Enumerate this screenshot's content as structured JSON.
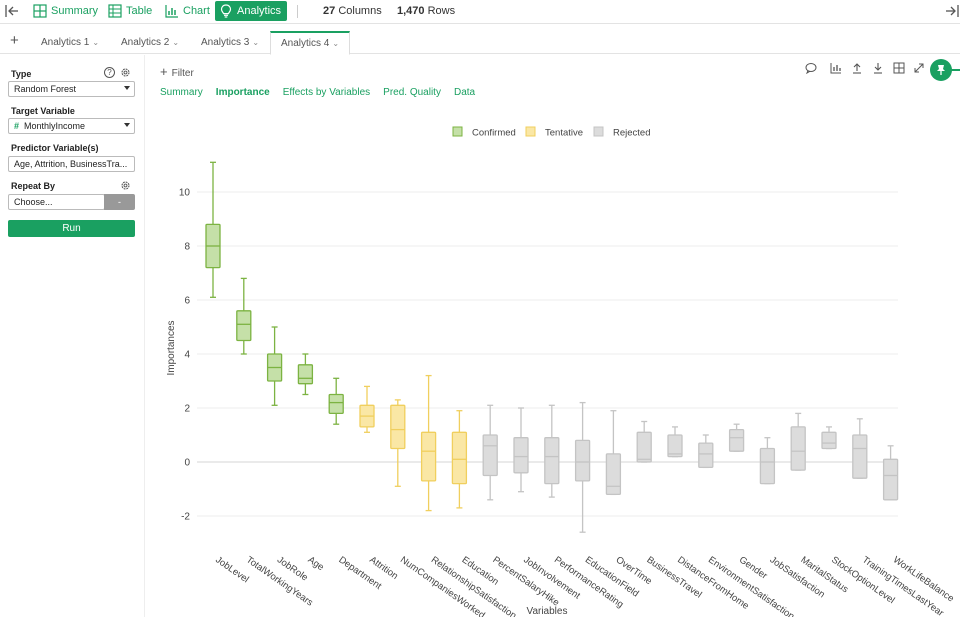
{
  "topbar": {
    "summary_label": "Summary",
    "table_label": "Table",
    "chart_label": "Chart",
    "analytics_label": "Analytics",
    "columns_count": "27",
    "columns_label": "Columns",
    "rows_count": "1,470",
    "rows_label": "Rows"
  },
  "tabs": [
    {
      "label": "Analytics 1"
    },
    {
      "label": "Analytics 2"
    },
    {
      "label": "Analytics 3"
    },
    {
      "label": "Analytics 4"
    }
  ],
  "left_panel": {
    "type_label": "Type",
    "type_value": "Random Forest",
    "target_label": "Target Variable",
    "target_value": "MonthlyIncome",
    "predictor_label": "Predictor Variable(s)",
    "predictor_value": "Age, Attrition, BusinessTra...",
    "repeat_label": "Repeat By",
    "repeat_placeholder": "Choose...",
    "repeat_button": "-",
    "run_label": "Run"
  },
  "main": {
    "filter_label": "Filter",
    "subtabs": [
      {
        "label": "Summary"
      },
      {
        "label": "Importance"
      },
      {
        "label": "Effects by Variables"
      },
      {
        "label": "Pred. Quality"
      },
      {
        "label": "Data"
      }
    ]
  },
  "colors": {
    "accent": "#1aa061",
    "confirmed_fill": "#c5e0a8",
    "confirmed_stroke": "#7cb342",
    "tentative_fill": "#fae7a5",
    "tentative_stroke": "#f0cf5e",
    "rejected_fill": "#dcdcdc",
    "rejected_stroke": "#c4c4c4"
  },
  "chart_data": {
    "type": "box",
    "xlabel": "Variables",
    "ylabel": "Importances",
    "ylim": [
      -3.2,
      12
    ],
    "yticks": [
      -2,
      0,
      2,
      4,
      6,
      8,
      10
    ],
    "legend": [
      {
        "name": "Confirmed",
        "key": "confirmed"
      },
      {
        "name": "Tentative",
        "key": "tentative"
      },
      {
        "name": "Rejected",
        "key": "rejected"
      }
    ],
    "legend_position": "top-center",
    "grid": true,
    "boxes": [
      {
        "name": "JobLevel",
        "status": "confirmed",
        "min": 6.1,
        "q1": 7.2,
        "median": 8.0,
        "q3": 8.8,
        "max": 11.1
      },
      {
        "name": "TotalWorkingYears",
        "status": "confirmed",
        "min": 4.0,
        "q1": 4.5,
        "median": 5.1,
        "q3": 5.6,
        "max": 6.8
      },
      {
        "name": "JobRole",
        "status": "confirmed",
        "min": 2.1,
        "q1": 3.0,
        "median": 3.5,
        "q3": 4.0,
        "max": 5.0
      },
      {
        "name": "Age",
        "status": "confirmed",
        "min": 2.5,
        "q1": 2.9,
        "median": 3.1,
        "q3": 3.6,
        "max": 4.0
      },
      {
        "name": "Department",
        "status": "confirmed",
        "min": 1.4,
        "q1": 1.8,
        "median": 2.2,
        "q3": 2.5,
        "max": 3.1
      },
      {
        "name": "Attrition",
        "status": "tentative",
        "min": 1.1,
        "q1": 1.3,
        "median": 1.7,
        "q3": 2.1,
        "max": 2.8
      },
      {
        "name": "NumCompaniesWorked",
        "status": "tentative",
        "min": -0.9,
        "q1": 0.5,
        "median": 1.2,
        "q3": 2.1,
        "max": 2.3
      },
      {
        "name": "RelationshipSatisfaction",
        "status": "tentative",
        "min": -1.8,
        "q1": -0.7,
        "median": 0.4,
        "q3": 1.1,
        "max": 3.2
      },
      {
        "name": "Education",
        "status": "tentative",
        "min": -1.7,
        "q1": -0.8,
        "median": 0.1,
        "q3": 1.1,
        "max": 1.9
      },
      {
        "name": "PercentSalaryHike",
        "status": "rejected",
        "min": -1.4,
        "q1": -0.5,
        "median": 0.6,
        "q3": 1.0,
        "max": 2.1
      },
      {
        "name": "JobInvolvement",
        "status": "rejected",
        "min": -1.1,
        "q1": -0.4,
        "median": 0.2,
        "q3": 0.9,
        "max": 2.0
      },
      {
        "name": "PerformanceRating",
        "status": "rejected",
        "min": -1.3,
        "q1": -0.8,
        "median": 0.2,
        "q3": 0.9,
        "max": 2.1
      },
      {
        "name": "EducationField",
        "status": "rejected",
        "min": -2.6,
        "q1": -0.7,
        "median": 0.0,
        "q3": 0.8,
        "max": 2.2
      },
      {
        "name": "OverTime",
        "status": "rejected",
        "min": -1.2,
        "q1": -1.2,
        "median": -0.9,
        "q3": 0.3,
        "max": 1.9
      },
      {
        "name": "BusinessTravel",
        "status": "rejected",
        "min": 0.0,
        "q1": 0.0,
        "median": 0.1,
        "q3": 1.1,
        "max": 1.5
      },
      {
        "name": "DistanceFromHome",
        "status": "rejected",
        "min": 0.2,
        "q1": 0.2,
        "median": 0.3,
        "q3": 1.0,
        "max": 1.3
      },
      {
        "name": "EnvironmentSatisfaction",
        "status": "rejected",
        "min": -0.2,
        "q1": -0.2,
        "median": 0.3,
        "q3": 0.7,
        "max": 1.0
      },
      {
        "name": "Gender",
        "status": "rejected",
        "min": 0.4,
        "q1": 0.4,
        "median": 0.9,
        "q3": 1.2,
        "max": 1.4
      },
      {
        "name": "JobSatisfaction",
        "status": "rejected",
        "min": -0.8,
        "q1": -0.8,
        "median": 0.0,
        "q3": 0.5,
        "max": 0.9
      },
      {
        "name": "MaritalStatus",
        "status": "rejected",
        "min": -0.3,
        "q1": -0.3,
        "median": 0.4,
        "q3": 1.3,
        "max": 1.8
      },
      {
        "name": "StockOptionLevel",
        "status": "rejected",
        "min": 0.5,
        "q1": 0.5,
        "median": 0.7,
        "q3": 1.1,
        "max": 1.3
      },
      {
        "name": "TrainingTimesLastYear",
        "status": "rejected",
        "min": -0.6,
        "q1": -0.6,
        "median": 0.5,
        "q3": 1.0,
        "max": 1.6
      },
      {
        "name": "WorkLifeBalance",
        "status": "rejected",
        "min": -1.4,
        "q1": -1.4,
        "median": -0.5,
        "q3": 0.1,
        "max": 0.6
      }
    ]
  }
}
